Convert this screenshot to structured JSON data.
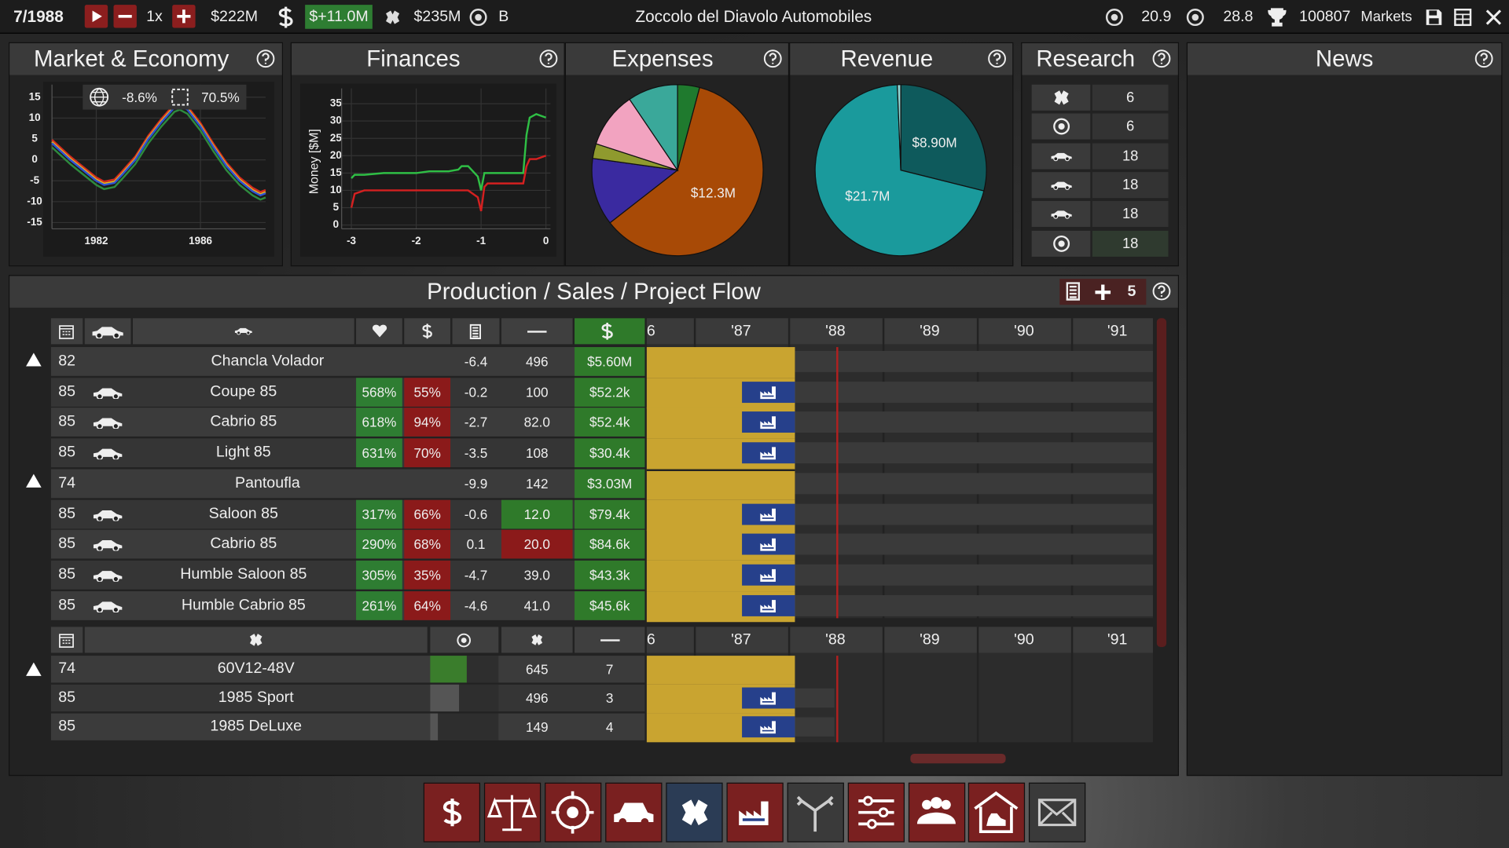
{
  "top_bar": {
    "date": "7/1988",
    "speed": "1x",
    "cash": "$222M",
    "profit": "$+11.0M",
    "debt": "$235M",
    "rank": "B",
    "company": "Zoccolo del Diavolo Automobiles",
    "image": "20.9",
    "quality": "28.8",
    "score": "100807",
    "markets": "Markets"
  },
  "market_stats": {
    "economy": "-8.6%",
    "market": "70.5%"
  },
  "chart_data": [
    {
      "type": "line",
      "title": "Market & Economy",
      "x": [
        1980.3,
        1981,
        1981.5,
        1982,
        1982.3,
        1982.7,
        1983,
        1983.5,
        1984,
        1984.5,
        1985,
        1985.2,
        1985.5,
        1986,
        1986.5,
        1987,
        1987.5,
        1988,
        1988.3,
        1988.5
      ],
      "xlim": [
        1980.3,
        1988.5
      ],
      "xticks": [
        1982,
        1986
      ],
      "ylim": [
        -16.5,
        18
      ],
      "yticks": [
        15,
        10,
        5,
        0,
        -5,
        -10,
        -15
      ],
      "grid": true,
      "series": [
        {
          "color": "#d42a1f",
          "values": [
            4.8,
            0.8,
            -1.7,
            -4.2,
            -5.2,
            -4.7,
            -2.7,
            0.8,
            5.8,
            9.8,
            13.3,
            13.8,
            12.8,
            8.8,
            3.8,
            -0.7,
            -4.2,
            -6.7,
            -7.7,
            -7.2
          ]
        },
        {
          "color": "#e8b41c",
          "values": [
            4.3,
            0.3,
            -2.2,
            -4.7,
            -5.7,
            -5.2,
            -3.2,
            0.3,
            5.3,
            9.3,
            12.8,
            13.3,
            12.3,
            8.3,
            3.3,
            -1.2,
            -4.7,
            -7.2,
            -8.2,
            -7.7
          ]
        },
        {
          "color": "#2f55d4",
          "values": [
            4,
            0,
            -2.5,
            -5,
            -6,
            -5.5,
            -3.5,
            0,
            5,
            9,
            12.5,
            13,
            12,
            8,
            3,
            -1.5,
            -5,
            -7.5,
            -8.5,
            -8
          ]
        },
        {
          "color": "#2e8b3e",
          "values": [
            3,
            -1,
            -3.5,
            -6,
            -7,
            -6.5,
            -4.5,
            -1,
            4,
            8,
            11.5,
            12,
            11,
            7,
            2,
            -2.5,
            -6,
            -8.5,
            -9.5,
            -9
          ]
        }
      ]
    },
    {
      "type": "line",
      "title": "Finances",
      "y_label": "Money [$M]",
      "x": [
        -3,
        -2.95,
        -2.8,
        -2.5,
        -2.2,
        -2.0,
        -1.8,
        -1.5,
        -1.35,
        -1.3,
        -1.2,
        -1.05,
        -1.0,
        -0.95,
        -0.9,
        -0.6,
        -0.35,
        -0.3,
        -0.25,
        -0.15,
        0
      ],
      "xlim": [
        -3.15,
        0.07
      ],
      "xticks": [
        -3,
        -2,
        -1,
        0
      ],
      "ylim": [
        -1.1,
        39.4
      ],
      "yticks": [
        35,
        30,
        25,
        20,
        15,
        10,
        5,
        0
      ],
      "grid": true,
      "series": [
        {
          "color": "#2fbf45",
          "values": [
            13.5,
            14.5,
            14.5,
            15,
            15,
            15,
            15.5,
            15.5,
            16,
            17,
            17,
            14,
            10,
            15,
            15,
            15,
            15,
            26,
            31,
            32,
            31
          ]
        },
        {
          "color": "#d42020",
          "values": [
            5,
            9,
            10,
            10,
            10,
            10,
            10,
            10,
            10,
            10,
            10,
            8,
            4,
            11,
            12,
            12,
            12,
            17,
            19,
            19,
            20
          ]
        }
      ]
    },
    {
      "type": "pie",
      "title": "Expenses",
      "values": [
        0.85,
        12.3,
        2.6,
        0.57,
        2.15,
        1.93
      ],
      "value_labels": [
        null,
        "$12.3M",
        null,
        null,
        null,
        null
      ],
      "colors": [
        "#1f7a2e",
        "#a84a06",
        "#3a2aa0",
        "#8f9a2e",
        "#f2a3c0",
        "#3aa89a"
      ]
    },
    {
      "type": "pie",
      "title": "Revenue",
      "values": [
        8.9,
        21.7,
        0.2
      ],
      "value_labels": [
        "$8.90M",
        "$21.7M",
        null
      ],
      "colors": [
        "#0e5a5c",
        "#1a9a9c",
        "#8fd6d4"
      ]
    }
  ],
  "research": {
    "title": "Research",
    "levels": [
      "6",
      "6",
      "18",
      "18",
      "18",
      "18"
    ]
  },
  "news": {
    "title": "News"
  },
  "production": {
    "title": "Production / Sales / Project Flow",
    "count": "5",
    "timeline": [
      "6",
      "'87",
      "'88",
      "'89",
      "'90",
      "'91"
    ],
    "models": [
      {
        "year": "82",
        "name": "Chancla Volador",
        "v1": "-6.4",
        "v2": "496",
        "price": "$5.60M"
      },
      {
        "year": "85",
        "name": "Coupe 85",
        "popularity": "568%",
        "margin": "55%",
        "v1": "-0.2",
        "v2": "100",
        "price": "$52.2k"
      },
      {
        "year": "85",
        "name": "Cabrio 85",
        "popularity": "618%",
        "margin": "94%",
        "v1": "-2.7",
        "v2": "82.0",
        "price": "$52.4k"
      },
      {
        "year": "85",
        "name": "Light 85",
        "popularity": "631%",
        "margin": "70%",
        "v1": "-3.5",
        "v2": "108",
        "price": "$30.4k"
      },
      {
        "year": "74",
        "name": "Pantoufla",
        "v1": "-9.9",
        "v2": "142",
        "price": "$3.03M"
      },
      {
        "year": "85",
        "name": "Saloon 85",
        "popularity": "317%",
        "margin": "66%",
        "v1": "-0.6",
        "v2": "12.0",
        "v2_color": "#2f7a2a",
        "price": "$79.4k"
      },
      {
        "year": "85",
        "name": "Cabrio 85",
        "popularity": "290%",
        "margin": "68%",
        "v1": "0.1",
        "v2": "20.0",
        "v2_color": "#8b1a1a",
        "price": "$84.6k"
      },
      {
        "year": "85",
        "name": "Humble Saloon 85",
        "popularity": "305%",
        "margin": "35%",
        "v1": "-4.7",
        "v2": "39.0",
        "price": "$43.3k"
      },
      {
        "year": "85",
        "name": "Humble Cabrio 85",
        "popularity": "261%",
        "margin": "64%",
        "v1": "-4.6",
        "v2": "41.0",
        "price": "$45.6k"
      }
    ],
    "engines": [
      {
        "year": "74",
        "name": "60V12-48V",
        "bar": 53,
        "bar_color": "#3a7d2c",
        "v1": "645",
        "v2": "7"
      },
      {
        "year": "85",
        "name": "1985 Sport",
        "bar": 42,
        "bar_color": "#555555",
        "v1": "496",
        "v2": "3"
      },
      {
        "year": "85",
        "name": "1985 DeLuxe",
        "bar": 11,
        "bar_color": "#555555",
        "v1": "149",
        "v2": "4"
      }
    ]
  }
}
